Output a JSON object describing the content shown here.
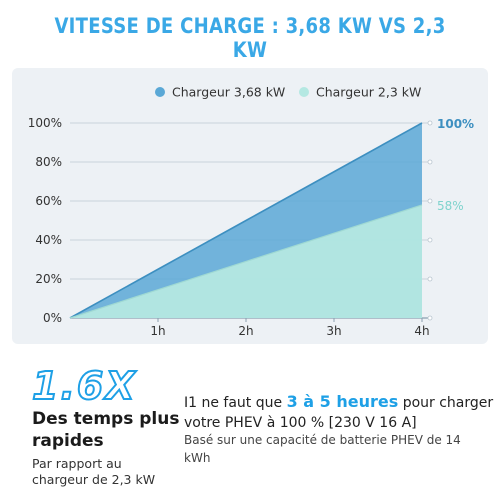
{
  "title": "VITESSE DE CHARGE : 3,68 KW VS 2,3 KW",
  "chart_data": {
    "type": "area",
    "x": [
      "0h",
      "1h",
      "2h",
      "3h",
      "4h"
    ],
    "x_tick_labels": [
      "1h",
      "2h",
      "3h",
      "4h"
    ],
    "y_tick_labels": [
      "0%",
      "20%",
      "40%",
      "60%",
      "80%",
      "100%"
    ],
    "ylim": [
      0,
      100
    ],
    "grid": true,
    "legend_position": "top-right",
    "series": [
      {
        "name": "Chargeur 3,68 kW",
        "values": [
          0,
          25,
          50,
          75,
          100
        ],
        "color": "#5aa8d6",
        "end_label": "100%"
      },
      {
        "name": "Chargeur 2,3 kW",
        "values": [
          0,
          14.5,
          29,
          43.5,
          58
        ],
        "color": "#b4e8e2",
        "end_label": "58%"
      }
    ]
  },
  "bottom": {
    "multiplier": "1.6X",
    "headline": "Des temps plus rapides",
    "subtext": "Par rapport au chargeur de 2,3 kW",
    "line1_prefix": "I1 ne faut que ",
    "line1_highlight": "3 à 5 heures",
    "line1_suffix": " pour charger votre PHEV à 100 % [230 V 16 A]",
    "line2": "Basé sur une capacité de batterie PHEV de 14 kWh"
  },
  "colors": {
    "accent": "#1ea0e6",
    "series_dark": "#5aa8d6",
    "series_light": "#b4e8e2",
    "end_label_dark": "#3d8fc0",
    "end_label_light": "#7fd3cd",
    "panel": "#edf1f5"
  }
}
